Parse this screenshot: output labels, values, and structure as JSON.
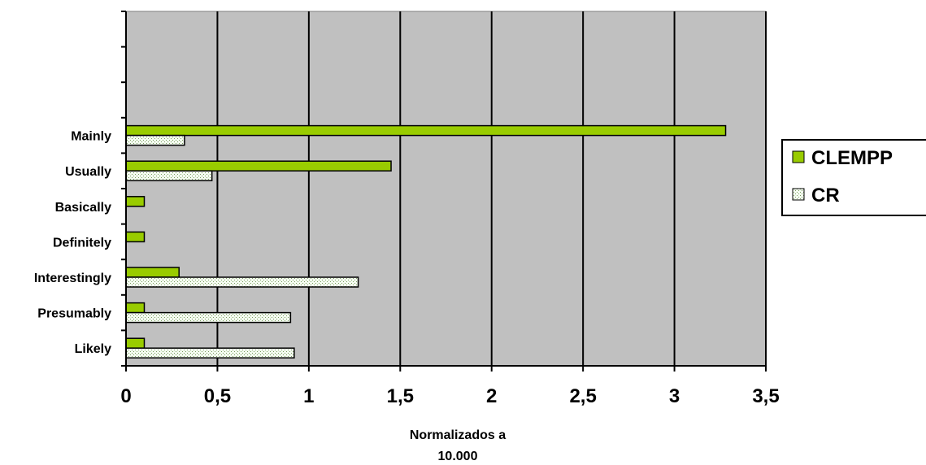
{
  "chart_data": {
    "type": "bar",
    "orientation": "horizontal",
    "categories": [
      "Likely",
      "Presumably",
      "Interestingly",
      "Definitely",
      "Basically",
      "Usually",
      "Mainly"
    ],
    "series": [
      {
        "name": "CLEMPP",
        "values": [
          0.1,
          0.1,
          0.29,
          0.1,
          0.1,
          1.45,
          3.28
        ],
        "color": "#99cc00"
      },
      {
        "name": "CR",
        "values": [
          0.92,
          0.9,
          1.27,
          0,
          0,
          0.47,
          0.32
        ],
        "color": "#e8f5e0"
      }
    ],
    "xlim": [
      0,
      3.5
    ],
    "xticks": [
      "0",
      "0,5",
      "1",
      "1,5",
      "2",
      "2,5",
      "3",
      "3,5"
    ],
    "xlabel_lines": [
      "Normalizados a",
      "10.000"
    ],
    "grid": true,
    "plot_background": "#c0c0c0",
    "legend_position": "right"
  }
}
